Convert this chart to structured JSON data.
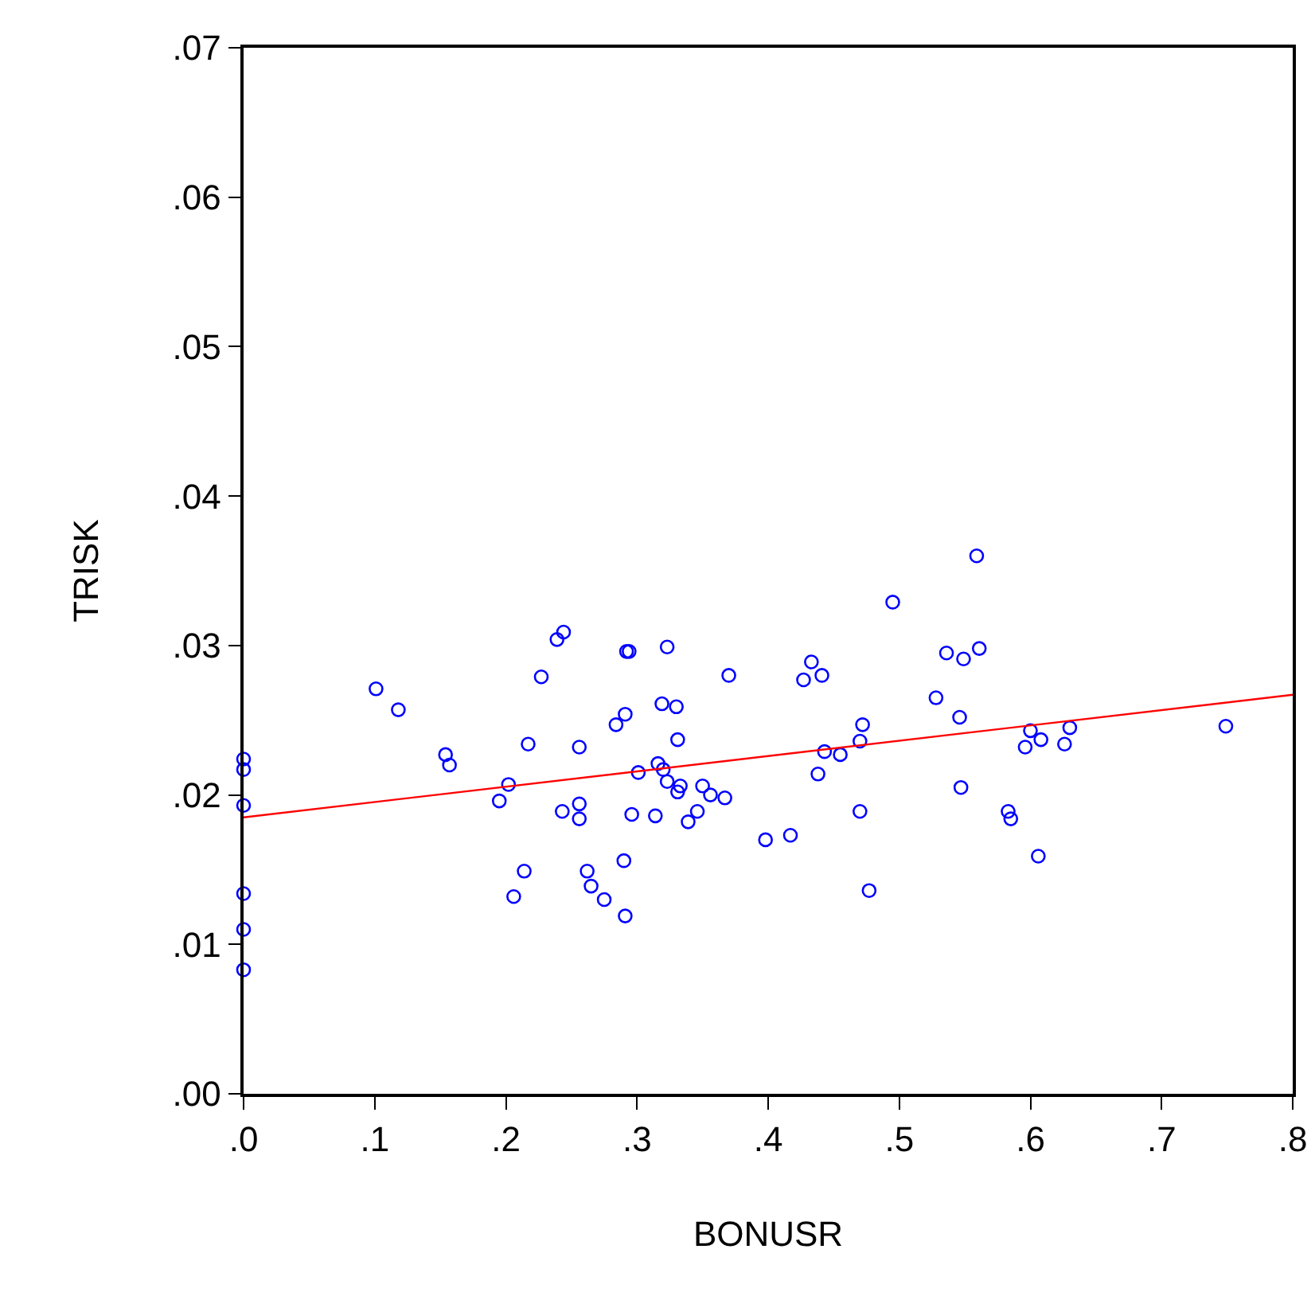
{
  "chart_data": {
    "type": "scatter",
    "xlabel": "BONUSR",
    "ylabel": "TRISK",
    "xlim": [
      0,
      0.8
    ],
    "ylim": [
      0,
      0.07
    ],
    "xticks": [
      {
        "value": 0,
        "label": ".0"
      },
      {
        "value": 0.1,
        "label": ".1"
      },
      {
        "value": 0.2,
        "label": ".2"
      },
      {
        "value": 0.3,
        "label": ".3"
      },
      {
        "value": 0.4,
        "label": ".4"
      },
      {
        "value": 0.5,
        "label": ".5"
      },
      {
        "value": 0.6,
        "label": ".6"
      },
      {
        "value": 0.7,
        "label": ".7"
      },
      {
        "value": 0.8,
        "label": ".8"
      }
    ],
    "yticks": [
      {
        "value": 0,
        "label": ".00"
      },
      {
        "value": 0.01,
        "label": ".01"
      },
      {
        "value": 0.02,
        "label": ".02"
      },
      {
        "value": 0.03,
        "label": ".03"
      },
      {
        "value": 0.04,
        "label": ".04"
      },
      {
        "value": 0.05,
        "label": ".05"
      },
      {
        "value": 0.06,
        "label": ".06"
      },
      {
        "value": 0.07,
        "label": ".07"
      }
    ],
    "series": [
      {
        "color": "#0000ff",
        "marker": "circle",
        "x": [
          0,
          0,
          0,
          0,
          0,
          0,
          0.101,
          0.118,
          0.154,
          0.157,
          0.195,
          0.202,
          0.214,
          0.206,
          0.217,
          0.227,
          0.239,
          0.244,
          0.256,
          0.243,
          0.256,
          0.256,
          0.262,
          0.265,
          0.275,
          0.291,
          0.29,
          0.296,
          0.301,
          0.284,
          0.291,
          0.292,
          0.294,
          0.323,
          0.319,
          0.33,
          0.331,
          0.316,
          0.32,
          0.323,
          0.333,
          0.331,
          0.314,
          0.339,
          0.346,
          0.35,
          0.356,
          0.367,
          0.37,
          0.398,
          0.417,
          0.438,
          0.443,
          0.455,
          0.47,
          0.47,
          0.472,
          0.477,
          0.427,
          0.433,
          0.441,
          0.495,
          0.528,
          0.536,
          0.546,
          0.547,
          0.549,
          0.559,
          0.561,
          0.6,
          0.608,
          0.596,
          0.63,
          0.626,
          0.583,
          0.585,
          0.606,
          0.749
        ],
        "values": [
          0.0224,
          0.0217,
          0.0193,
          0.0134,
          0.011,
          0.0083,
          0.0271,
          0.0257,
          0.0227,
          0.022,
          0.0196,
          0.0207,
          0.0149,
          0.0132,
          0.0234,
          0.0279,
          0.0304,
          0.0309,
          0.0232,
          0.0189,
          0.0194,
          0.0184,
          0.0149,
          0.0139,
          0.013,
          0.0119,
          0.0156,
          0.0187,
          0.0215,
          0.0247,
          0.0254,
          0.0296,
          0.0296,
          0.0299,
          0.0261,
          0.0259,
          0.0237,
          0.0221,
          0.0217,
          0.0209,
          0.0206,
          0.0202,
          0.0186,
          0.0182,
          0.0189,
          0.0206,
          0.02,
          0.0198,
          0.028,
          0.017,
          0.0173,
          0.0214,
          0.0229,
          0.0227,
          0.0189,
          0.0236,
          0.0247,
          0.0136,
          0.0277,
          0.0289,
          0.028,
          0.0329,
          0.0265,
          0.0295,
          0.0252,
          0.0205,
          0.0291,
          0.036,
          0.0298,
          0.0243,
          0.0237,
          0.0232,
          0.0245,
          0.0234,
          0.0189,
          0.0184,
          0.0159,
          0.0246
        ]
      },
      {
        "type": "line",
        "color": "#ff0000",
        "marker": "none",
        "line_style": "solid",
        "x": [
          0,
          0.8
        ],
        "values": [
          0.0185,
          0.0267
        ]
      }
    ]
  }
}
